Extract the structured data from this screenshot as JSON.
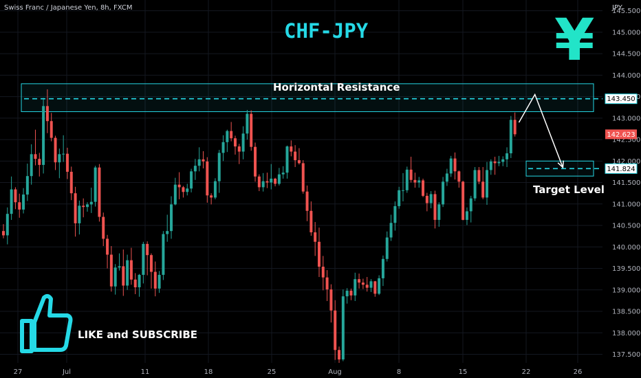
{
  "header": {
    "symbol_text": "Swiss Franc / Japanese Yen, 8h, FXCM",
    "title": "CHF-JPY",
    "yen_symbol": "¥",
    "currency_label": "JPY"
  },
  "annotations": {
    "resistance_label": "Horizontal Resistance",
    "target_label": "Target Level",
    "like_text": "LIKE and SUBSCRIBE",
    "thumb_icon": "thumbs-up-icon"
  },
  "colors": {
    "background": "#000000",
    "up_candle": "#26a69a",
    "down_candle": "#ef5350",
    "accent": "#25d9e6",
    "yen_color": "#22e4c8"
  },
  "chart_data": {
    "type": "candlestick",
    "symbol": "CHFJPY",
    "timeframe": "8h",
    "ylabel": "JPY",
    "ylim": [
      137.3,
      145.75
    ],
    "y_ticks": [
      137.5,
      138.0,
      138.5,
      139.0,
      139.5,
      140.0,
      140.5,
      141.0,
      141.5,
      142.0,
      142.5,
      143.0,
      143.5,
      144.0,
      144.5,
      145.0,
      145.5
    ],
    "x_tick_labels": [
      "27",
      "Jul",
      "11",
      "18",
      "25",
      "Aug",
      "8",
      "15",
      "22",
      "26"
    ],
    "price_labels": [
      {
        "value": 143.45,
        "text": "143.450",
        "kind": "resistance"
      },
      {
        "value": 142.623,
        "text": "142.623",
        "kind": "current"
      },
      {
        "value": 141.824,
        "text": "141.824",
        "kind": "target"
      }
    ],
    "resistance_zone": {
      "top": 143.8,
      "bottom": 143.15,
      "level": 143.45
    },
    "target_zone": {
      "top": 142.0,
      "bottom": 141.65,
      "level": 141.824
    },
    "projection_path": [
      {
        "bar": 129,
        "price": 142.9
      },
      {
        "bar": 133,
        "price": 143.55
      },
      {
        "bar": 140,
        "price": 141.85
      }
    ],
    "candles": [
      [
        140.37,
        140.53,
        140.2,
        140.27
      ],
      [
        140.27,
        140.92,
        140.06,
        140.77
      ],
      [
        140.77,
        141.64,
        140.63,
        141.34
      ],
      [
        141.34,
        141.39,
        140.88,
        141.04
      ],
      [
        141.04,
        141.24,
        140.68,
        140.87
      ],
      [
        140.87,
        141.37,
        140.78,
        141.22
      ],
      [
        141.22,
        141.94,
        141.07,
        141.65
      ],
      [
        141.65,
        142.39,
        141.45,
        142.16
      ],
      [
        142.16,
        142.73,
        141.9,
        142.05
      ],
      [
        142.05,
        142.19,
        141.64,
        141.91
      ],
      [
        141.91,
        143.47,
        141.71,
        143.28
      ],
      [
        143.28,
        143.67,
        142.65,
        142.93
      ],
      [
        142.93,
        143.12,
        142.46,
        142.54
      ],
      [
        142.54,
        142.59,
        141.79,
        141.97
      ],
      [
        141.97,
        142.29,
        141.6,
        142.16
      ],
      [
        142.16,
        142.6,
        141.98,
        142.17
      ],
      [
        142.17,
        142.31,
        141.58,
        141.75
      ],
      [
        141.75,
        141.87,
        141.09,
        141.25
      ],
      [
        141.25,
        141.4,
        140.24,
        140.55
      ],
      [
        140.55,
        141.08,
        140.29,
        140.96
      ],
      [
        140.96,
        141.13,
        140.69,
        140.93
      ],
      [
        140.93,
        141.04,
        140.82,
        140.99
      ],
      [
        140.99,
        141.38,
        140.79,
        141.05
      ],
      [
        141.05,
        141.89,
        140.94,
        141.85
      ],
      [
        141.85,
        141.93,
        140.59,
        140.7
      ],
      [
        140.7,
        140.8,
        140.02,
        140.19
      ],
      [
        140.19,
        140.28,
        139.5,
        139.82
      ],
      [
        139.82,
        140.02,
        138.96,
        139.08
      ],
      [
        139.08,
        139.6,
        138.89,
        139.52
      ],
      [
        139.52,
        139.85,
        139.45,
        139.55
      ],
      [
        139.55,
        139.94,
        138.86,
        139.1
      ],
      [
        139.1,
        139.82,
        139.0,
        139.69
      ],
      [
        139.69,
        139.98,
        139.12,
        139.24
      ],
      [
        139.24,
        139.39,
        138.9,
        139.06
      ],
      [
        139.06,
        139.37,
        138.84,
        139.35
      ],
      [
        139.35,
        140.12,
        139.15,
        140.07
      ],
      [
        140.07,
        140.13,
        139.34,
        139.81
      ],
      [
        139.81,
        139.85,
        139.03,
        139.42
      ],
      [
        139.42,
        139.66,
        138.85,
        139.03
      ],
      [
        139.03,
        139.44,
        138.93,
        139.35
      ],
      [
        139.35,
        140.37,
        139.23,
        140.3
      ],
      [
        140.3,
        140.75,
        140.12,
        140.37
      ],
      [
        140.37,
        141.18,
        140.19,
        140.99
      ],
      [
        140.99,
        141.61,
        140.97,
        141.45
      ],
      [
        141.45,
        141.74,
        141.11,
        141.39
      ],
      [
        141.39,
        141.42,
        141.15,
        141.28
      ],
      [
        141.28,
        141.47,
        141.2,
        141.36
      ],
      [
        141.36,
        141.82,
        141.27,
        141.76
      ],
      [
        141.76,
        142.05,
        141.56,
        141.89
      ],
      [
        141.89,
        142.32,
        141.76,
        142.04
      ],
      [
        142.04,
        142.23,
        141.83,
        141.99
      ],
      [
        141.99,
        142.09,
        141.03,
        141.2
      ],
      [
        141.2,
        141.25,
        140.99,
        141.15
      ],
      [
        141.15,
        141.6,
        141.11,
        141.53
      ],
      [
        141.53,
        142.26,
        141.26,
        142.19
      ],
      [
        142.19,
        142.6,
        142.0,
        142.44
      ],
      [
        142.44,
        142.73,
        142.21,
        142.7
      ],
      [
        142.7,
        142.91,
        142.46,
        142.53
      ],
      [
        142.53,
        142.59,
        142.15,
        142.34
      ],
      [
        142.34,
        142.4,
        141.93,
        142.22
      ],
      [
        142.22,
        142.81,
        142.04,
        142.64
      ],
      [
        142.64,
        143.19,
        142.5,
        143.1
      ],
      [
        143.1,
        143.18,
        142.24,
        142.33
      ],
      [
        142.33,
        142.43,
        141.52,
        141.64
      ],
      [
        141.64,
        141.69,
        141.3,
        141.39
      ],
      [
        141.39,
        141.72,
        141.29,
        141.53
      ],
      [
        141.53,
        141.73,
        141.37,
        141.5
      ],
      [
        141.5,
        141.93,
        141.34,
        141.59
      ],
      [
        141.59,
        141.61,
        141.41,
        141.47
      ],
      [
        141.47,
        141.84,
        141.43,
        141.69
      ],
      [
        141.69,
        141.88,
        141.59,
        141.73
      ],
      [
        141.73,
        142.36,
        141.59,
        142.34
      ],
      [
        142.34,
        142.48,
        142.11,
        142.22
      ],
      [
        142.22,
        142.37,
        141.86,
        142.02
      ],
      [
        142.02,
        142.3,
        141.92,
        141.95
      ],
      [
        141.95,
        142.02,
        141.24,
        141.29
      ],
      [
        141.29,
        141.43,
        140.6,
        140.84
      ],
      [
        140.84,
        141.06,
        140.26,
        140.34
      ],
      [
        140.34,
        140.58,
        139.79,
        140.12
      ],
      [
        140.12,
        140.45,
        139.3,
        139.54
      ],
      [
        139.54,
        139.79,
        138.99,
        139.29
      ],
      [
        139.29,
        139.46,
        138.74,
        139.01
      ],
      [
        139.01,
        139.13,
        138.24,
        138.52
      ],
      [
        138.52,
        138.76,
        137.37,
        137.6
      ],
      [
        137.6,
        137.68,
        137.3,
        137.38
      ],
      [
        137.38,
        139.01,
        137.34,
        138.85
      ],
      [
        138.85,
        139.04,
        138.68,
        138.98
      ],
      [
        138.98,
        139.03,
        138.76,
        138.87
      ],
      [
        138.87,
        139.4,
        138.74,
        139.25
      ],
      [
        139.25,
        139.38,
        139.03,
        139.17
      ],
      [
        139.17,
        139.26,
        139.02,
        139.12
      ],
      [
        139.12,
        139.3,
        138.96,
        139.05
      ],
      [
        139.05,
        139.25,
        138.95,
        139.2
      ],
      [
        139.2,
        139.21,
        138.84,
        138.91
      ],
      [
        138.91,
        139.34,
        138.88,
        139.27
      ],
      [
        139.27,
        139.8,
        139.09,
        139.72
      ],
      [
        139.72,
        140.36,
        139.66,
        140.22
      ],
      [
        140.22,
        140.75,
        140.14,
        140.56
      ],
      [
        140.56,
        141.06,
        140.38,
        140.95
      ],
      [
        140.95,
        141.4,
        140.89,
        141.32
      ],
      [
        141.32,
        141.72,
        141.06,
        141.32
      ],
      [
        141.32,
        141.87,
        141.26,
        141.8
      ],
      [
        141.8,
        142.1,
        141.5,
        141.56
      ],
      [
        141.56,
        141.73,
        141.38,
        141.5
      ],
      [
        141.5,
        141.63,
        141.38,
        141.55
      ],
      [
        141.55,
        141.59,
        141.16,
        141.19
      ],
      [
        141.19,
        141.26,
        140.83,
        141.02
      ],
      [
        141.02,
        141.3,
        140.9,
        141.23
      ],
      [
        141.23,
        141.31,
        140.43,
        140.63
      ],
      [
        140.63,
        141.04,
        140.47,
        140.99
      ],
      [
        140.99,
        141.63,
        140.93,
        141.52
      ],
      [
        141.52,
        141.82,
        141.42,
        141.71
      ],
      [
        141.71,
        142.12,
        141.63,
        142.06
      ],
      [
        142.06,
        142.2,
        141.57,
        141.76
      ],
      [
        141.76,
        141.78,
        141.38,
        141.52
      ],
      [
        141.52,
        141.54,
        140.62,
        140.63
      ],
      [
        140.63,
        140.92,
        140.51,
        140.83
      ],
      [
        140.83,
        141.19,
        140.57,
        141.13
      ],
      [
        141.13,
        141.86,
        141.07,
        141.79
      ],
      [
        141.79,
        141.86,
        141.46,
        141.52
      ],
      [
        141.52,
        141.86,
        141.11,
        141.15
      ],
      [
        141.15,
        141.98,
        140.98,
        141.79
      ],
      [
        141.79,
        142.04,
        141.68,
        141.99
      ],
      [
        141.99,
        142.1,
        141.68,
        141.95
      ],
      [
        141.95,
        142.12,
        141.88,
        141.98
      ],
      [
        141.98,
        142.11,
        141.88,
        142.04
      ],
      [
        142.04,
        142.32,
        141.86,
        142.18
      ],
      [
        142.18,
        143.05,
        142.07,
        142.96
      ],
      [
        142.96,
        143.13,
        142.57,
        142.623
      ]
    ]
  }
}
